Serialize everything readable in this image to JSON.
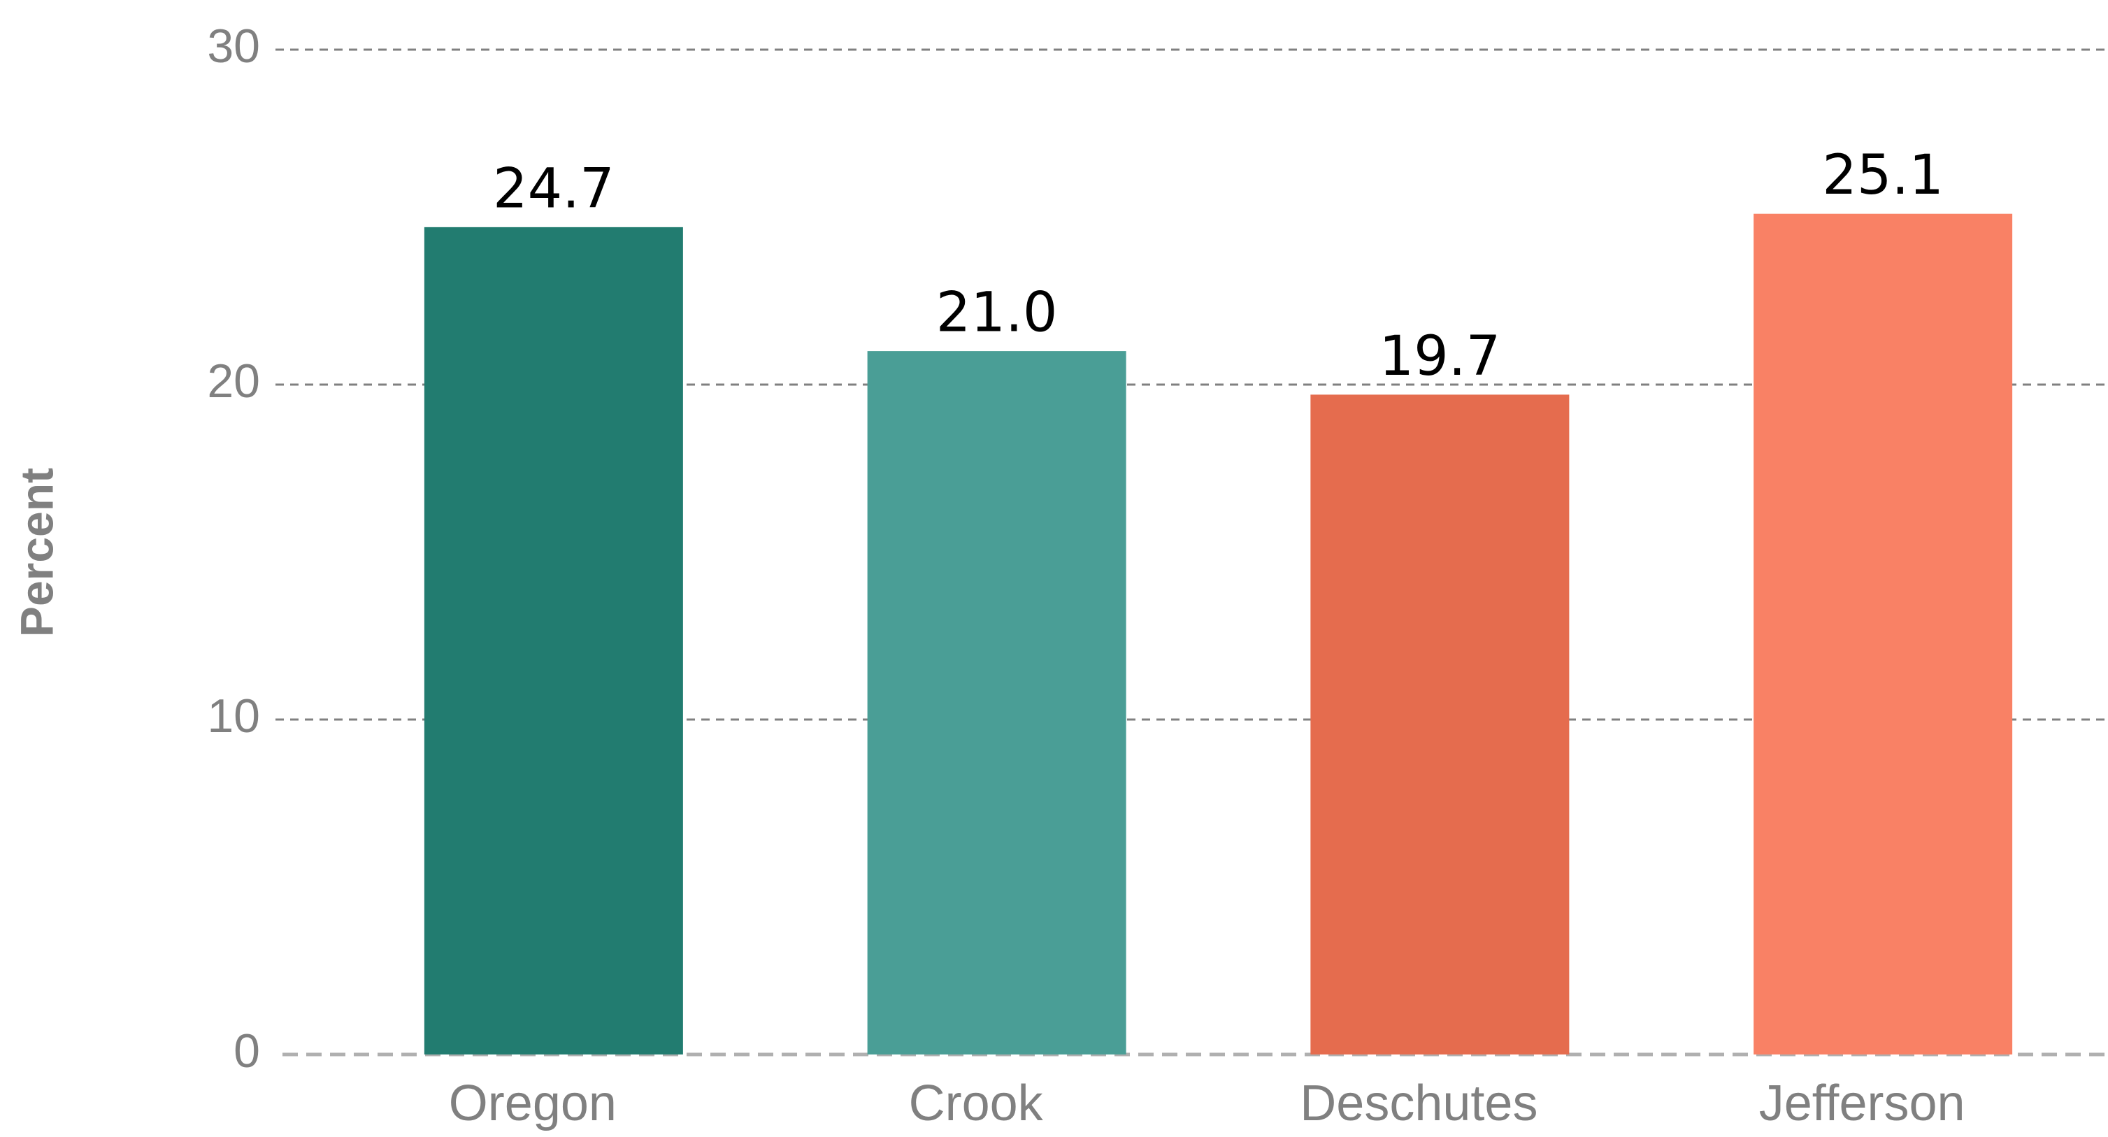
{
  "chart_data": {
    "type": "bar",
    "y_axis_label": "Percent",
    "categories": [
      "Oregon",
      "Crook",
      "Deschutes",
      "Jefferson"
    ],
    "values": [
      24.7,
      21.0,
      19.7,
      25.1
    ],
    "value_labels": [
      "24.7",
      "21.0",
      "19.7",
      "25.1"
    ],
    "colors": [
      "#227c70",
      "#4a9e96",
      "#e56c4e",
      "#f98165"
    ],
    "ylim": [
      0,
      30
    ],
    "yticks": [
      0,
      10,
      20,
      30
    ],
    "grid": true
  }
}
